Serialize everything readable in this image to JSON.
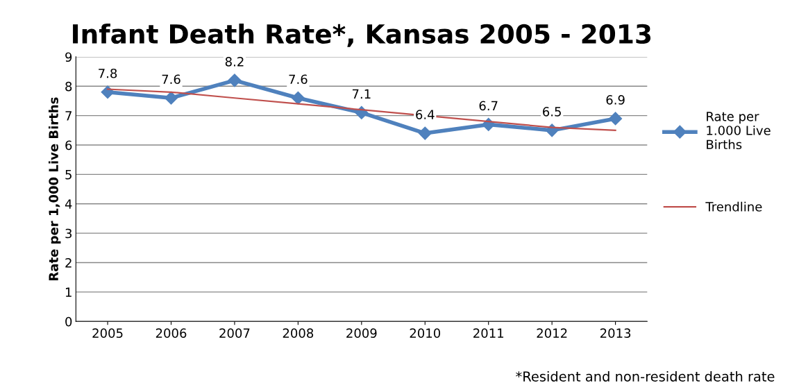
{
  "chart_data": {
    "type": "line",
    "title": "Infant Death Rate*, Kansas 2005 - 2013",
    "ylabel": "Rate per 1,000 Live Births",
    "categories": [
      "2005",
      "2006",
      "2007",
      "2008",
      "2009",
      "2010",
      "2011",
      "2012",
      "2013"
    ],
    "series": [
      {
        "name": "Rate per\n1.000 Live\nBirths",
        "color": "#4f81bd",
        "values": [
          7.8,
          7.6,
          8.2,
          7.6,
          7.1,
          6.4,
          6.7,
          6.5,
          6.9
        ],
        "marker": "diamond",
        "data_labels": true
      },
      {
        "name": "Trendline",
        "type": "line",
        "color": "#c0504d",
        "values": [
          7.9,
          7.8,
          7.6,
          7.4,
          7.2,
          7.0,
          6.8,
          6.6,
          6.5
        ],
        "marker": "none"
      }
    ],
    "ylim": [
      0,
      9
    ],
    "yticks": [
      0,
      1,
      2,
      3,
      4,
      5,
      6,
      7,
      8,
      9
    ],
    "grid": "y",
    "legend": "right",
    "annotations": [
      "*Resident and non-resident death rate"
    ]
  }
}
